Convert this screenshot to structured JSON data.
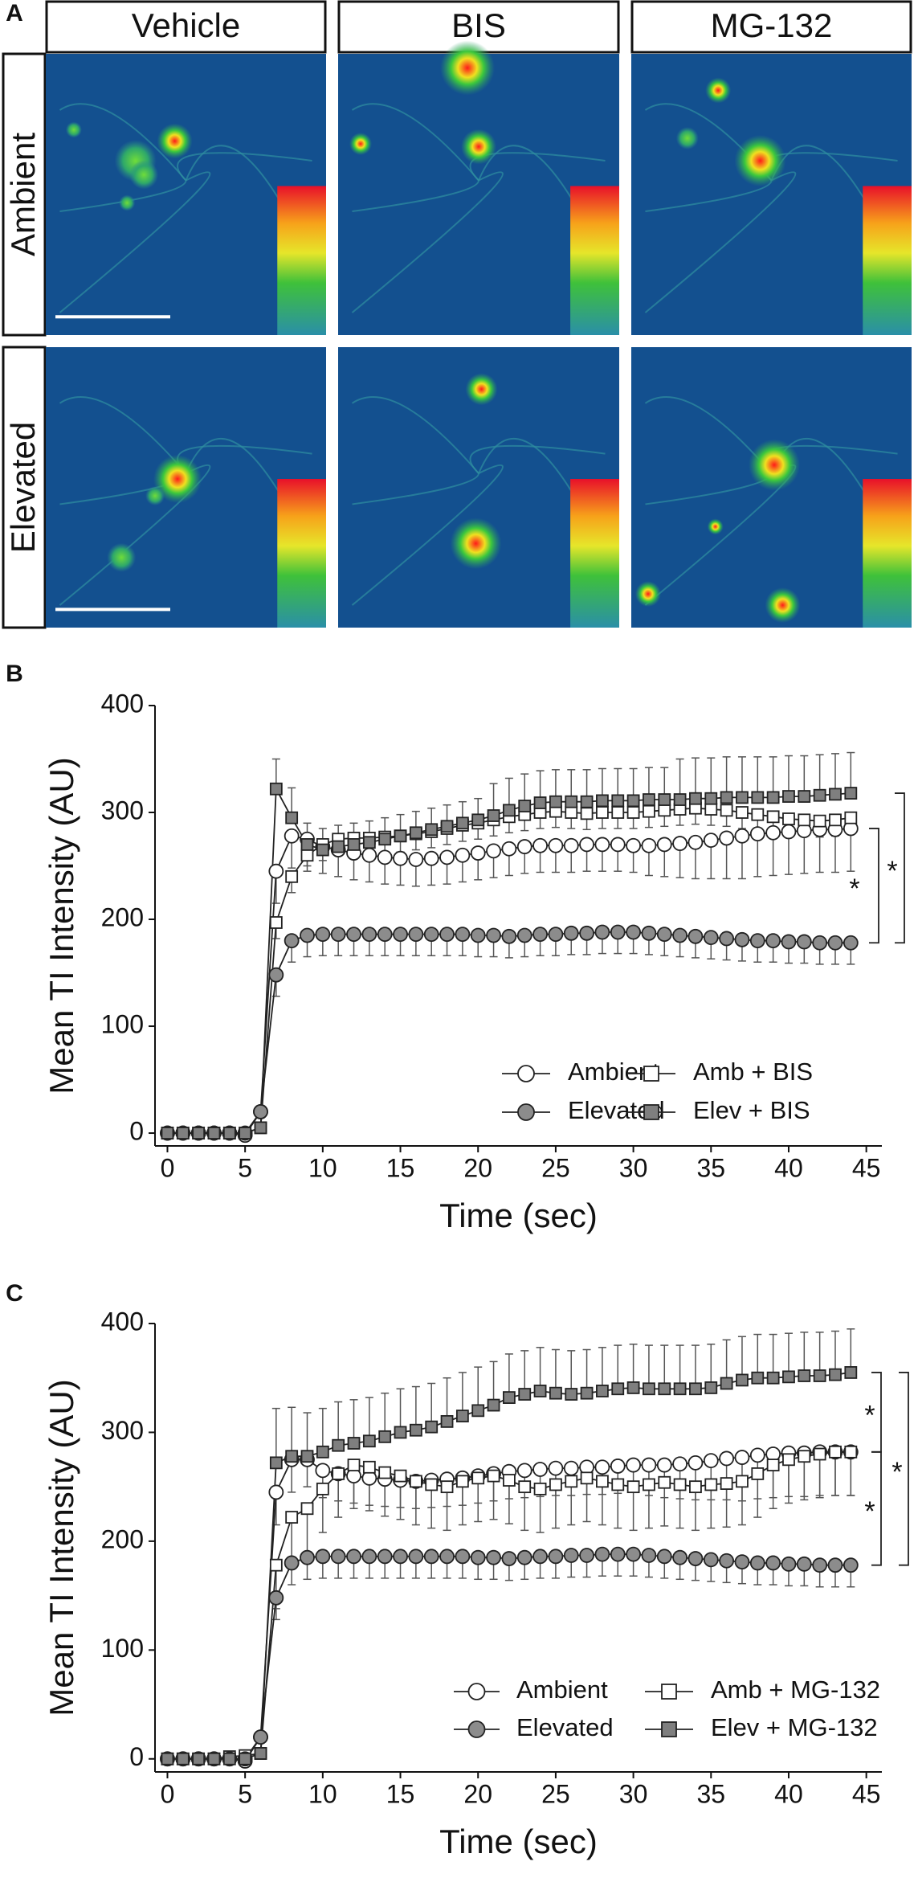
{
  "panel_a": {
    "label": "A",
    "columns": [
      "Vehicle",
      "BIS",
      "MG-132"
    ],
    "rows": [
      "Ambient",
      "Elevated"
    ]
  },
  "chart_data": [
    {
      "type": "line",
      "label": "B",
      "xlabel": "Time (sec)",
      "ylabel": "Mean TI Intensity (AU)",
      "xlim": [
        -0.8,
        46
      ],
      "ylim": [
        -12,
        400
      ],
      "xticks": [
        0,
        5,
        10,
        15,
        20,
        25,
        30,
        35,
        40,
        45
      ],
      "yticks": [
        0,
        100,
        200,
        300,
        400
      ],
      "legend": "lower right",
      "x": [
        0,
        1,
        2,
        3,
        4,
        5,
        6,
        7,
        8,
        9,
        10,
        11,
        12,
        13,
        14,
        15,
        16,
        17,
        18,
        19,
        20,
        21,
        22,
        23,
        24,
        25,
        26,
        27,
        28,
        29,
        30,
        31,
        32,
        33,
        34,
        35,
        36,
        37,
        38,
        39,
        40,
        41,
        42,
        43,
        44
      ],
      "series": [
        {
          "name": "Ambient",
          "color": "#ffffff",
          "marker": "circle",
          "error_side": "lower",
          "values": [
            0,
            0,
            0,
            0,
            0,
            -2,
            20,
            245,
            278,
            275,
            268,
            265,
            262,
            260,
            258,
            257,
            256,
            257,
            258,
            260,
            262,
            264,
            266,
            268,
            269,
            269,
            269,
            270,
            270,
            270,
            269,
            269,
            270,
            271,
            272,
            274,
            276,
            278,
            280,
            281,
            282,
            283,
            284,
            284,
            285
          ],
          "errors": [
            2,
            2,
            2,
            2,
            2,
            2,
            5,
            30,
            30,
            25,
            25,
            25,
            25,
            25,
            25,
            25,
            25,
            25,
            25,
            25,
            25,
            25,
            25,
            25,
            25,
            25,
            25,
            25,
            25,
            25,
            25,
            28,
            30,
            32,
            34,
            36,
            38,
            40,
            40,
            40,
            40,
            40,
            40,
            40,
            40
          ]
        },
        {
          "name": "Amb + BIS",
          "color": "#ffffff",
          "marker": "square",
          "error_side": "lower",
          "values": [
            0,
            0,
            0,
            0,
            0,
            0,
            5,
            197,
            240,
            260,
            270,
            275,
            276,
            276,
            277,
            278,
            280,
            282,
            285,
            288,
            290,
            293,
            296,
            298,
            300,
            301,
            300,
            299,
            300,
            300,
            300,
            301,
            302,
            303,
            304,
            303,
            302,
            300,
            298,
            296,
            294,
            293,
            292,
            293,
            295
          ],
          "errors": [
            2,
            2,
            2,
            2,
            2,
            2,
            5,
            15,
            15,
            15,
            15,
            15,
            15,
            15,
            15,
            15,
            15,
            15,
            15,
            15,
            15,
            15,
            15,
            15,
            15,
            15,
            15,
            15,
            15,
            15,
            15,
            15,
            15,
            15,
            15,
            15,
            15,
            15,
            15,
            15,
            15,
            15,
            15,
            15,
            15
          ]
        },
        {
          "name": "Elevated",
          "color": "#8c8c8c",
          "marker": "circle",
          "error_side": "lower",
          "values": [
            0,
            0,
            0,
            0,
            0,
            0,
            20,
            148,
            180,
            185,
            186,
            186,
            186,
            186,
            186,
            186,
            186,
            186,
            186,
            186,
            185,
            185,
            184,
            185,
            186,
            186,
            187,
            187,
            188,
            188,
            188,
            187,
            186,
            185,
            184,
            183,
            182,
            181,
            180,
            180,
            179,
            179,
            178,
            178,
            178
          ],
          "errors": [
            2,
            2,
            2,
            2,
            2,
            2,
            5,
            20,
            20,
            20,
            20,
            20,
            20,
            20,
            20,
            20,
            20,
            20,
            20,
            20,
            20,
            20,
            20,
            20,
            20,
            20,
            20,
            20,
            20,
            20,
            20,
            20,
            20,
            20,
            20,
            20,
            20,
            20,
            20,
            20,
            20,
            20,
            20,
            20,
            20
          ]
        },
        {
          "name": "Elev + BIS",
          "color": "#7f7f7f",
          "marker": "square",
          "error_side": "upper",
          "values": [
            0,
            0,
            0,
            0,
            0,
            0,
            5,
            322,
            295,
            270,
            265,
            268,
            270,
            272,
            275,
            278,
            281,
            284,
            287,
            290,
            293,
            297,
            302,
            306,
            309,
            310,
            310,
            310,
            311,
            311,
            311,
            312,
            312,
            312,
            313,
            313,
            314,
            314,
            314,
            314,
            315,
            315,
            316,
            317,
            318
          ],
          "errors": [
            2,
            2,
            2,
            2,
            2,
            2,
            5,
            28,
            28,
            20,
            20,
            20,
            20,
            20,
            20,
            20,
            20,
            20,
            20,
            20,
            20,
            30,
            30,
            30,
            30,
            30,
            30,
            30,
            30,
            30,
            30,
            30,
            30,
            38,
            38,
            38,
            38,
            38,
            38,
            38,
            38,
            38,
            38,
            38,
            38
          ]
        }
      ],
      "brackets": [
        {
          "from": 178,
          "to": 285,
          "label": "*"
        },
        {
          "from": 178,
          "to": 318,
          "label": "*"
        }
      ]
    },
    {
      "type": "line",
      "label": "C",
      "xlabel": "Time (sec)",
      "ylabel": "Mean TI Intensity (AU)",
      "xlim": [
        -0.8,
        46
      ],
      "ylim": [
        -12,
        400
      ],
      "xticks": [
        0,
        5,
        10,
        15,
        20,
        25,
        30,
        35,
        40,
        45
      ],
      "yticks": [
        0,
        100,
        200,
        300,
        400
      ],
      "legend": "lower right",
      "x": [
        0,
        1,
        2,
        3,
        4,
        5,
        6,
        7,
        8,
        9,
        10,
        11,
        12,
        13,
        14,
        15,
        16,
        17,
        18,
        19,
        20,
        21,
        22,
        23,
        24,
        25,
        26,
        27,
        28,
        29,
        30,
        31,
        32,
        33,
        34,
        35,
        36,
        37,
        38,
        39,
        40,
        41,
        42,
        43,
        44
      ],
      "series": [
        {
          "name": "Ambient",
          "color": "#ffffff",
          "marker": "circle",
          "error_side": "lower",
          "values": [
            0,
            0,
            0,
            0,
            0,
            -2,
            20,
            245,
            275,
            275,
            265,
            262,
            260,
            258,
            257,
            256,
            255,
            256,
            257,
            258,
            260,
            262,
            264,
            265,
            266,
            267,
            267,
            268,
            268,
            269,
            270,
            270,
            270,
            271,
            272,
            274,
            276,
            277,
            279,
            280,
            281,
            281,
            282,
            282,
            282
          ],
          "errors": [
            2,
            2,
            2,
            2,
            2,
            2,
            5,
            30,
            30,
            25,
            25,
            25,
            25,
            25,
            25,
            25,
            25,
            25,
            25,
            25,
            25,
            25,
            25,
            25,
            25,
            25,
            25,
            25,
            25,
            25,
            25,
            28,
            30,
            32,
            34,
            36,
            38,
            40,
            40,
            40,
            40,
            40,
            40,
            40,
            40
          ]
        },
        {
          "name": "Amb + MG-132",
          "color": "#ffffff",
          "marker": "square",
          "error_side": "lower",
          "values": [
            0,
            0,
            0,
            0,
            2,
            3,
            5,
            178,
            222,
            230,
            248,
            262,
            270,
            268,
            263,
            260,
            255,
            252,
            250,
            255,
            258,
            260,
            256,
            250,
            248,
            252,
            255,
            258,
            255,
            252,
            250,
            252,
            254,
            252,
            250,
            252,
            253,
            255,
            262,
            270,
            275,
            278,
            280,
            282,
            282
          ],
          "errors": [
            2,
            2,
            2,
            2,
            2,
            2,
            5,
            40,
            40,
            40,
            40,
            40,
            40,
            40,
            40,
            40,
            40,
            40,
            40,
            40,
            40,
            40,
            40,
            40,
            40,
            40,
            40,
            40,
            40,
            40,
            40,
            40,
            40,
            40,
            40,
            40,
            40,
            40,
            40,
            40,
            40,
            40,
            40,
            40,
            40
          ]
        },
        {
          "name": "Elevated",
          "color": "#8c8c8c",
          "marker": "circle",
          "error_side": "lower",
          "values": [
            0,
            0,
            0,
            0,
            0,
            0,
            20,
            148,
            180,
            185,
            186,
            186,
            186,
            186,
            186,
            186,
            186,
            186,
            186,
            186,
            185,
            185,
            184,
            185,
            186,
            186,
            187,
            187,
            188,
            188,
            188,
            187,
            186,
            185,
            184,
            183,
            182,
            181,
            180,
            180,
            179,
            179,
            178,
            178,
            178
          ],
          "errors": [
            2,
            2,
            2,
            2,
            2,
            2,
            5,
            20,
            20,
            20,
            20,
            20,
            20,
            20,
            20,
            20,
            20,
            20,
            20,
            20,
            20,
            20,
            20,
            20,
            20,
            20,
            20,
            20,
            20,
            20,
            20,
            20,
            20,
            20,
            20,
            20,
            20,
            20,
            20,
            20,
            20,
            20,
            20,
            20,
            20
          ]
        },
        {
          "name": "Elev + MG-132",
          "color": "#7f7f7f",
          "marker": "square",
          "error_side": "upper",
          "values": [
            0,
            0,
            0,
            0,
            0,
            0,
            5,
            272,
            278,
            278,
            282,
            288,
            290,
            292,
            296,
            300,
            302,
            305,
            310,
            315,
            320,
            325,
            332,
            335,
            338,
            336,
            335,
            336,
            338,
            340,
            341,
            340,
            340,
            340,
            340,
            341,
            345,
            348,
            350,
            350,
            351,
            352,
            352,
            353,
            355
          ],
          "errors": [
            2,
            2,
            2,
            2,
            2,
            2,
            5,
            50,
            45,
            40,
            40,
            40,
            40,
            40,
            40,
            40,
            40,
            40,
            40,
            40,
            40,
            40,
            40,
            40,
            40,
            40,
            40,
            40,
            40,
            40,
            40,
            40,
            40,
            40,
            40,
            40,
            40,
            40,
            40,
            40,
            40,
            40,
            40,
            40,
            40
          ]
        }
      ],
      "brackets": [
        {
          "from": 282,
          "to": 355,
          "label": "*"
        },
        {
          "from": 178,
          "to": 282,
          "label": "*"
        },
        {
          "from": 178,
          "to": 355,
          "label": "*"
        }
      ]
    }
  ]
}
